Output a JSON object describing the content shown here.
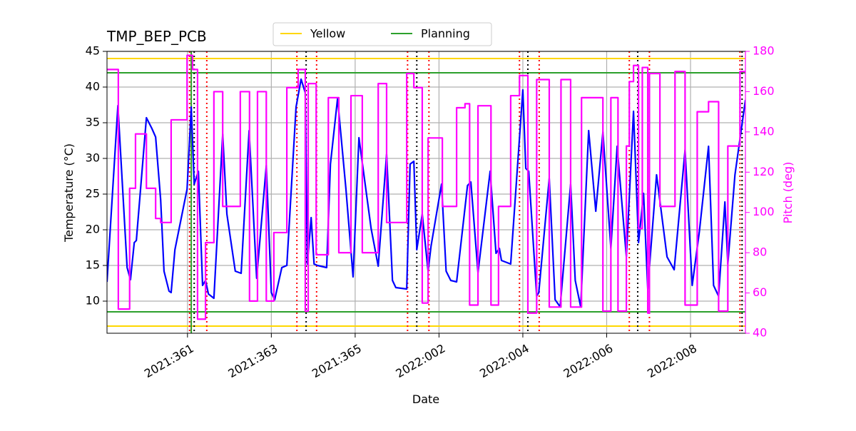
{
  "chart_data": {
    "type": "line",
    "title": "TMP_BEP_PCB",
    "xlabel": "Date",
    "ylabel": "Temperature (°C)",
    "y2label": "Pitch (deg)",
    "y2color": "#ff00ff",
    "grid": true,
    "legend": "upper center",
    "xlim": [
      359.08,
      374.31
    ],
    "xticks": [
      {
        "value": 361,
        "label": "2021:361"
      },
      {
        "value": 363,
        "label": "2021:363"
      },
      {
        "value": 365,
        "label": "2021:365"
      },
      {
        "value": 367,
        "label": "2022:002"
      },
      {
        "value": 369,
        "label": "2022:004"
      },
      {
        "value": 371,
        "label": "2022:006"
      },
      {
        "value": 373,
        "label": "2022:008"
      }
    ],
    "ylim": [
      5.5,
      45
    ],
    "yticks": [
      10,
      15,
      20,
      25,
      30,
      35,
      40,
      45
    ],
    "y2lim": [
      40,
      180
    ],
    "y2ticks": [
      40,
      60,
      80,
      100,
      120,
      140,
      160,
      180
    ],
    "hlines": [
      {
        "name": "Yellow",
        "color": "#ffd700",
        "values": [
          6.5,
          44
        ]
      },
      {
        "name": "Planning",
        "color": "#2ca02c",
        "values": [
          8.5,
          42
        ]
      }
    ],
    "vlines": [
      {
        "color": "#ff0000",
        "style": "dotted",
        "values": [
          361.05,
          361.46,
          363.61,
          364.08,
          366.25,
          366.76,
          368.92,
          369.39,
          371.54,
          372.02,
          374.18
        ]
      },
      {
        "color": "#000000",
        "style": "dotted",
        "values": [
          361.16,
          363.83,
          366.47,
          369.12,
          371.74,
          374.23
        ]
      },
      {
        "color": "#2ca02c",
        "style": "solid",
        "values": [
          361.09
        ]
      }
    ],
    "series": [
      {
        "color": "#0000ff",
        "x": [
          359.08,
          359.34,
          359.56,
          359.64,
          359.73,
          359.78,
          360.02,
          360.15,
          360.24,
          360.36,
          360.44,
          360.56,
          360.61,
          360.7,
          360.99,
          361.09,
          361.16,
          361.26,
          361.36,
          361.43,
          361.5,
          361.63,
          361.84,
          361.94,
          362.14,
          362.28,
          362.47,
          362.65,
          362.88,
          363.0,
          363.08,
          363.25,
          363.37,
          363.59,
          363.71,
          363.81,
          363.86,
          363.95,
          364.02,
          364.1,
          364.32,
          364.41,
          364.58,
          364.78,
          364.95,
          365.09,
          365.38,
          365.55,
          365.75,
          365.89,
          365.97,
          366.23,
          366.31,
          366.4,
          366.47,
          366.6,
          366.74,
          366.81,
          367.06,
          367.17,
          367.28,
          367.42,
          367.68,
          367.76,
          367.93,
          368.22,
          368.36,
          368.44,
          368.49,
          368.71,
          369.0,
          369.07,
          369.14,
          369.33,
          369.38,
          369.63,
          369.77,
          369.89,
          370.14,
          370.25,
          370.38,
          370.57,
          370.74,
          370.91,
          371.1,
          371.25,
          371.47,
          371.64,
          371.76,
          371.88,
          371.98,
          372.19,
          372.44,
          372.61,
          372.87,
          373.04,
          373.21,
          373.43,
          373.55,
          373.67,
          373.82,
          373.89,
          374.06,
          374.31
        ],
        "values": [
          12.7,
          37.4,
          14.7,
          13,
          18.2,
          18.5,
          35.7,
          34.2,
          33,
          24.2,
          14.2,
          11.4,
          11.2,
          17.2,
          25.7,
          37.2,
          26.4,
          28.2,
          12.2,
          12.9,
          11,
          10.4,
          33.4,
          22.2,
          14.2,
          13.9,
          33.9,
          13.2,
          29,
          11.2,
          10.2,
          14.7,
          15,
          37.2,
          41.1,
          39.2,
          15.2,
          21.7,
          15.2,
          15,
          14.7,
          29.2,
          38.4,
          25.7,
          13.4,
          32.9,
          20.2,
          14.9,
          30.6,
          12.9,
          11.9,
          11.7,
          29.2,
          29.6,
          17.2,
          22.2,
          14.2,
          17.7,
          26.4,
          14.2,
          12.9,
          12.7,
          26.2,
          26.7,
          14,
          28.2,
          16.7,
          17.4,
          15.7,
          15.2,
          39.6,
          28.6,
          28.2,
          10.7,
          11.2,
          27.2,
          10.2,
          9.2,
          26.4,
          12.9,
          9.2,
          33.9,
          22.6,
          33.7,
          17.4,
          31.7,
          16.2,
          36.6,
          18.2,
          25.1,
          11.7,
          27.7,
          16.2,
          14.4,
          31.2,
          12.2,
          19.7,
          31.7,
          12.2,
          10.7,
          23.9,
          15.2,
          27.7,
          38.2
        ]
      },
      {
        "color": "#ff00ff",
        "axis": "y2",
        "step": "post",
        "x": [
          359.08,
          359.35,
          359.62,
          359.76,
          360.02,
          360.24,
          360.36,
          360.61,
          360.99,
          361.12,
          361.24,
          361.43,
          361.63,
          361.84,
          362.26,
          362.48,
          362.67,
          362.88,
          363.06,
          363.37,
          363.64,
          363.81,
          363.88,
          364.07,
          364.36,
          364.61,
          364.9,
          365.17,
          365.55,
          365.75,
          366.23,
          366.4,
          366.6,
          366.74,
          367.08,
          367.42,
          367.62,
          367.73,
          367.93,
          368.24,
          368.42,
          368.71,
          368.92,
          369.12,
          369.33,
          369.63,
          369.91,
          370.14,
          370.4,
          370.59,
          370.72,
          370.91,
          371.1,
          371.27,
          371.47,
          371.54,
          371.64,
          371.76,
          371.85,
          371.98,
          372.02,
          372.27,
          372.63,
          372.87,
          373.16,
          373.43,
          373.67,
          373.89,
          374.18,
          374.31
        ],
        "values": [
          171,
          52,
          112,
          139,
          112,
          97,
          95,
          146,
          178,
          171,
          47,
          85,
          160,
          103,
          160,
          56,
          160,
          56,
          90,
          162,
          171,
          51,
          164,
          79,
          157,
          80,
          158,
          80,
          164,
          95,
          169,
          162,
          55,
          137,
          103,
          152,
          154,
          54,
          153,
          54,
          103,
          158,
          168,
          50,
          166,
          53,
          166,
          53,
          157,
          157,
          157,
          51,
          157,
          51,
          133,
          165,
          173,
          92,
          172,
          50,
          169,
          103,
          170,
          54,
          150,
          155,
          51,
          133,
          170,
          170
        ]
      }
    ]
  }
}
